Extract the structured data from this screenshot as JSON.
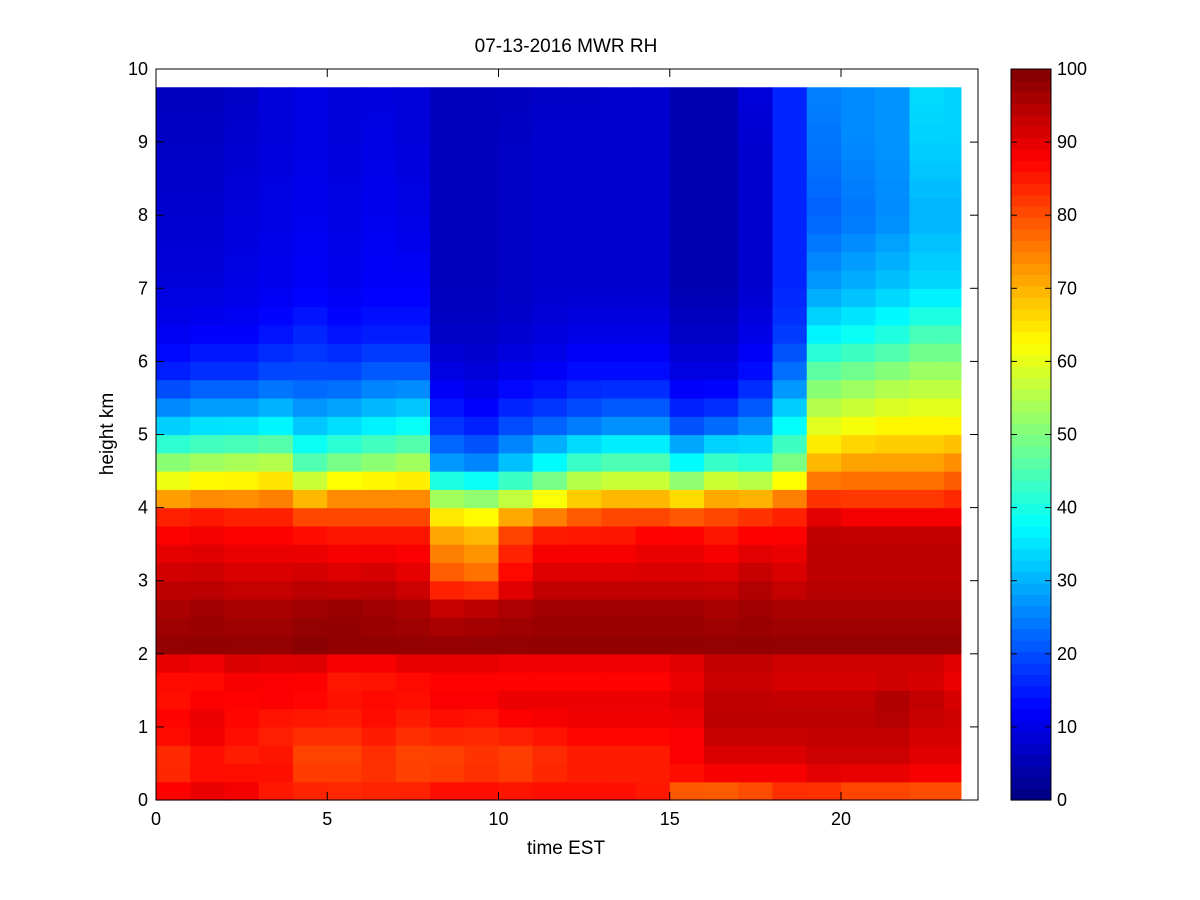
{
  "chart_data": {
    "type": "heatmap",
    "title": "07-13-2016 MWR RH",
    "xlabel": "time EST",
    "ylabel": "height km",
    "xlim": [
      0,
      24
    ],
    "ylim": [
      0,
      10
    ],
    "xticks": [
      0,
      5,
      10,
      15,
      20
    ],
    "yticks": [
      0,
      1,
      2,
      3,
      4,
      5,
      6,
      7,
      8,
      9,
      10
    ],
    "colorbar": {
      "range": [
        0,
        100
      ],
      "ticks": [
        0,
        10,
        20,
        30,
        40,
        50,
        60,
        70,
        80,
        90,
        100
      ],
      "colormap": "jet"
    },
    "grid": false,
    "time_step_hours": 1,
    "data_extent_hours": [
      0,
      23.5
    ],
    "data_top_km": 9.75,
    "profile_heights_km": [
      0,
      0.2,
      0.5,
      1.0,
      1.3,
      1.8,
      2.1,
      2.6,
      3.0,
      3.6,
      3.9,
      4.2,
      4.6,
      5.2,
      5.8,
      6.4,
      7.0,
      8.0,
      9.0,
      9.75
    ],
    "profiles": [
      {
        "time": 0.5,
        "rh": [
          90,
          86,
          82,
          88,
          86,
          87,
          98,
          96,
          93,
          88,
          84,
          68,
          52,
          30,
          16,
          11,
          9,
          8,
          7,
          6
        ]
      },
      {
        "time": 1.5,
        "rh": [
          92,
          88,
          85,
          90,
          88,
          86,
          98,
          97,
          93,
          89,
          85,
          70,
          54,
          32,
          18,
          12,
          9,
          8,
          7,
          6
        ]
      },
      {
        "time": 2.5,
        "rh": [
          88,
          89,
          84,
          87,
          87,
          89,
          98,
          96,
          92,
          88,
          84,
          70,
          55,
          32,
          18,
          12,
          10,
          9,
          8,
          7
        ]
      },
      {
        "time": 3.5,
        "rh": [
          84,
          86,
          86,
          84,
          88,
          88,
          98,
          96,
          92,
          88,
          84,
          72,
          56,
          34,
          20,
          14,
          11,
          10,
          9,
          9
        ]
      },
      {
        "time": 4.5,
        "rh": [
          84,
          84,
          80,
          84,
          87,
          88,
          99,
          97,
          93,
          87,
          80,
          66,
          46,
          30,
          20,
          16,
          12,
          11,
          10,
          10
        ]
      },
      {
        "time": 5.5,
        "rh": [
          83,
          84,
          80,
          84,
          86,
          85,
          98,
          98,
          92,
          86,
          80,
          72,
          50,
          32,
          20,
          14,
          11,
          10,
          9,
          9
        ]
      },
      {
        "time": 6.5,
        "rh": [
          84,
          84,
          82,
          86,
          87,
          85,
          98,
          97,
          93,
          86,
          80,
          72,
          52,
          34,
          22,
          15,
          12,
          11,
          10,
          9
        ]
      },
      {
        "time": 7.5,
        "rh": [
          86,
          83,
          80,
          84,
          86,
          87,
          98,
          96,
          91,
          86,
          80,
          72,
          54,
          36,
          22,
          15,
          12,
          10,
          9,
          9
        ]
      },
      {
        "time": 8.5,
        "rh": [
          90,
          84,
          80,
          85,
          88,
          87,
          98,
          94,
          80,
          72,
          64,
          50,
          28,
          16,
          10,
          7,
          6,
          6,
          6,
          6
        ]
      },
      {
        "time": 9.5,
        "rh": [
          90,
          84,
          82,
          84,
          88,
          87,
          98,
          95,
          78,
          70,
          62,
          48,
          26,
          14,
          9,
          7,
          6,
          6,
          6,
          6
        ]
      },
      {
        "time": 10.5,
        "rh": [
          88,
          84,
          80,
          86,
          90,
          86,
          98,
          96,
          88,
          82,
          70,
          52,
          32,
          18,
          11,
          8,
          7,
          7,
          7,
          6
        ]
      },
      {
        "time": 11.5,
        "rh": [
          86,
          86,
          82,
          87,
          90,
          86,
          98,
          97,
          92,
          86,
          74,
          58,
          38,
          20,
          12,
          9,
          8,
          8,
          8,
          7
        ]
      },
      {
        "time": 12.5,
        "rh": [
          86,
          86,
          84,
          88,
          90,
          86,
          98,
          97,
          92,
          86,
          78,
          64,
          44,
          22,
          14,
          10,
          8,
          8,
          8,
          7
        ]
      },
      {
        "time": 13.5,
        "rh": [
          86,
          86,
          84,
          88,
          90,
          86,
          98,
          97,
          92,
          86,
          80,
          66,
          46,
          24,
          14,
          10,
          8,
          8,
          8,
          8
        ]
      },
      {
        "time": 14.5,
        "rh": [
          84,
          86,
          84,
          88,
          90,
          86,
          98,
          97,
          92,
          88,
          80,
          66,
          46,
          24,
          14,
          10,
          8,
          8,
          8,
          8
        ]
      },
      {
        "time": 15.5,
        "rh": [
          70,
          84,
          88,
          88,
          91,
          88,
          98,
          97,
          92,
          88,
          78,
          62,
          38,
          18,
          10,
          7,
          5,
          5,
          5,
          5
        ]
      },
      {
        "time": 16.5,
        "rh": [
          66,
          86,
          90,
          94,
          94,
          92,
          98,
          96,
          92,
          86,
          80,
          68,
          44,
          20,
          10,
          7,
          5,
          5,
          5,
          5
        ]
      },
      {
        "time": 17.5,
        "rh": [
          70,
          86,
          90,
          94,
          94,
          92,
          98,
          97,
          94,
          88,
          82,
          66,
          42,
          24,
          14,
          10,
          8,
          8,
          8,
          9
        ]
      },
      {
        "time": 18.5,
        "rh": [
          78,
          86,
          90,
          94,
          94,
          90,
          98,
          96,
          92,
          88,
          84,
          72,
          50,
          36,
          24,
          18,
          16,
          16,
          16,
          16
        ]
      },
      {
        "time": 19.5,
        "rh": [
          74,
          88,
          92,
          94,
          94,
          90,
          98,
          96,
          94,
          94,
          90,
          80,
          70,
          58,
          48,
          36,
          28,
          22,
          24,
          25
        ]
      },
      {
        "time": 20.5,
        "rh": [
          72,
          86,
          92,
          94,
          94,
          90,
          98,
          96,
          94,
          94,
          88,
          80,
          72,
          60,
          50,
          38,
          30,
          24,
          26,
          26
        ]
      },
      {
        "time": 21.5,
        "rh": [
          72,
          86,
          92,
          94,
          96,
          90,
          98,
          96,
          94,
          94,
          88,
          80,
          72,
          62,
          52,
          40,
          32,
          26,
          27,
          27
        ]
      },
      {
        "time": 22.5,
        "rh": [
          70,
          86,
          90,
          92,
          94,
          90,
          98,
          96,
          94,
          94,
          88,
          80,
          72,
          62,
          54,
          44,
          34,
          30,
          33,
          34
        ]
      },
      {
        "time": 23.5,
        "rh": [
          70,
          86,
          90,
          92,
          92,
          88,
          98,
          96,
          94,
          94,
          88,
          82,
          74,
          62,
          54,
          44,
          34,
          30,
          33,
          33
        ]
      }
    ]
  }
}
